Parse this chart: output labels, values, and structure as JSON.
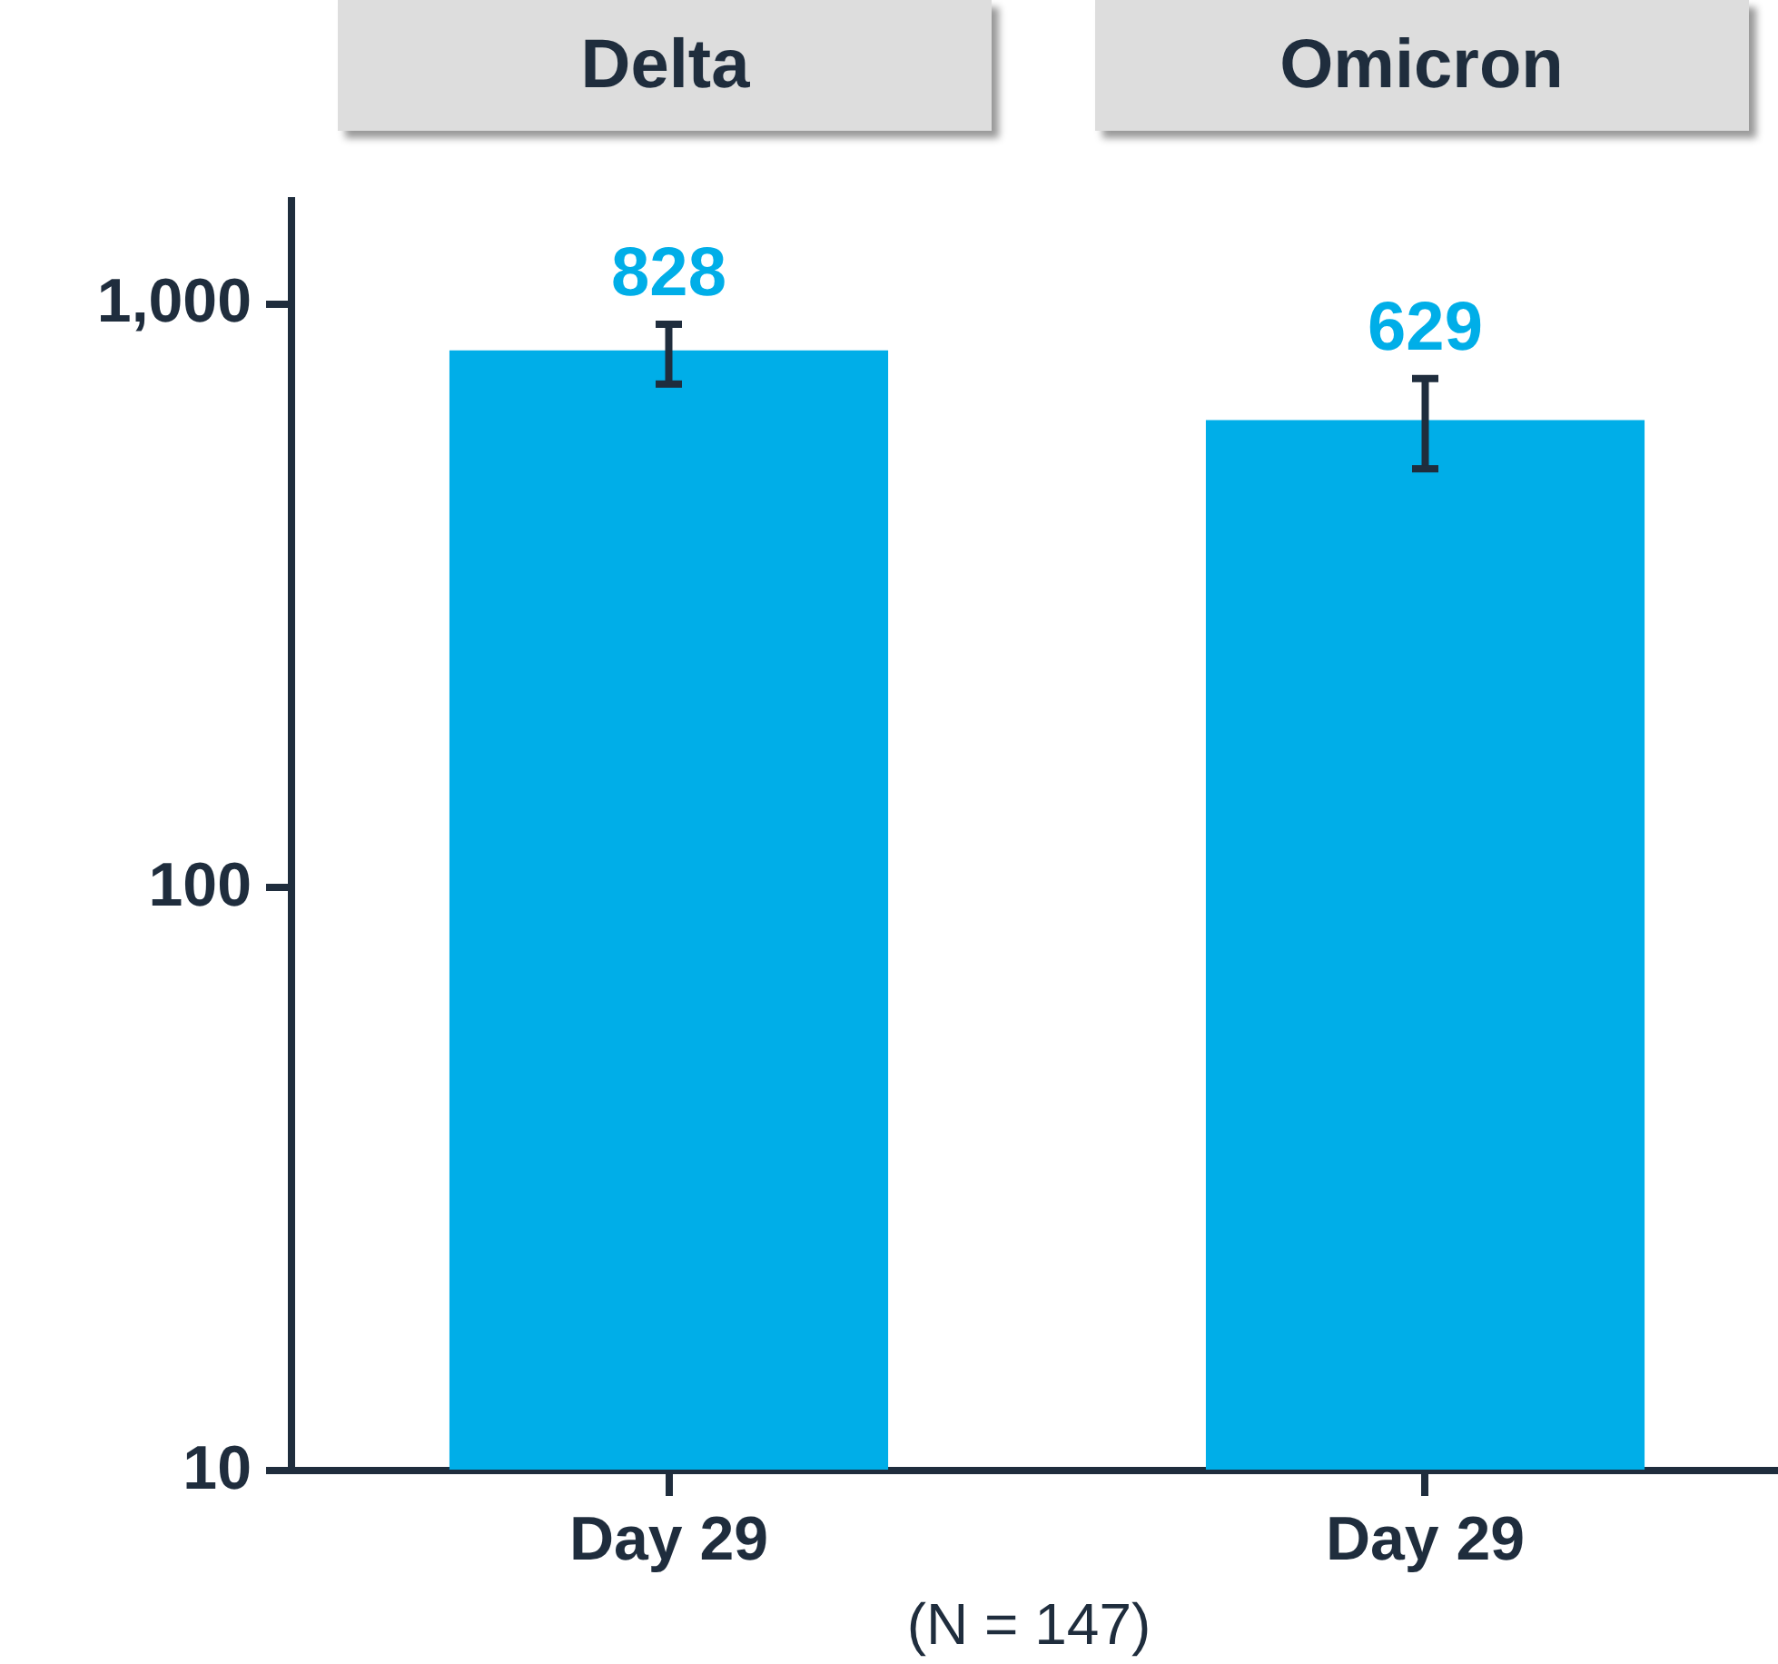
{
  "chart_data": {
    "type": "bar",
    "categories": [
      "Day 29",
      "Day 29"
    ],
    "values": [
      828,
      629
    ],
    "color": "#00aee8",
    "data_labels": true,
    "errors": [
      [
        725,
        918
      ],
      [
        519,
        741
      ]
    ],
    "log": true,
    "ylim": [
      10,
      1500
    ],
    "yticks": [
      10,
      100,
      {
        "value": 1000,
        "label": "1,000"
      }
    ],
    "grid": false,
    "annotations": [
      "Delta",
      "Omicron",
      "(N = 147)"
    ]
  }
}
